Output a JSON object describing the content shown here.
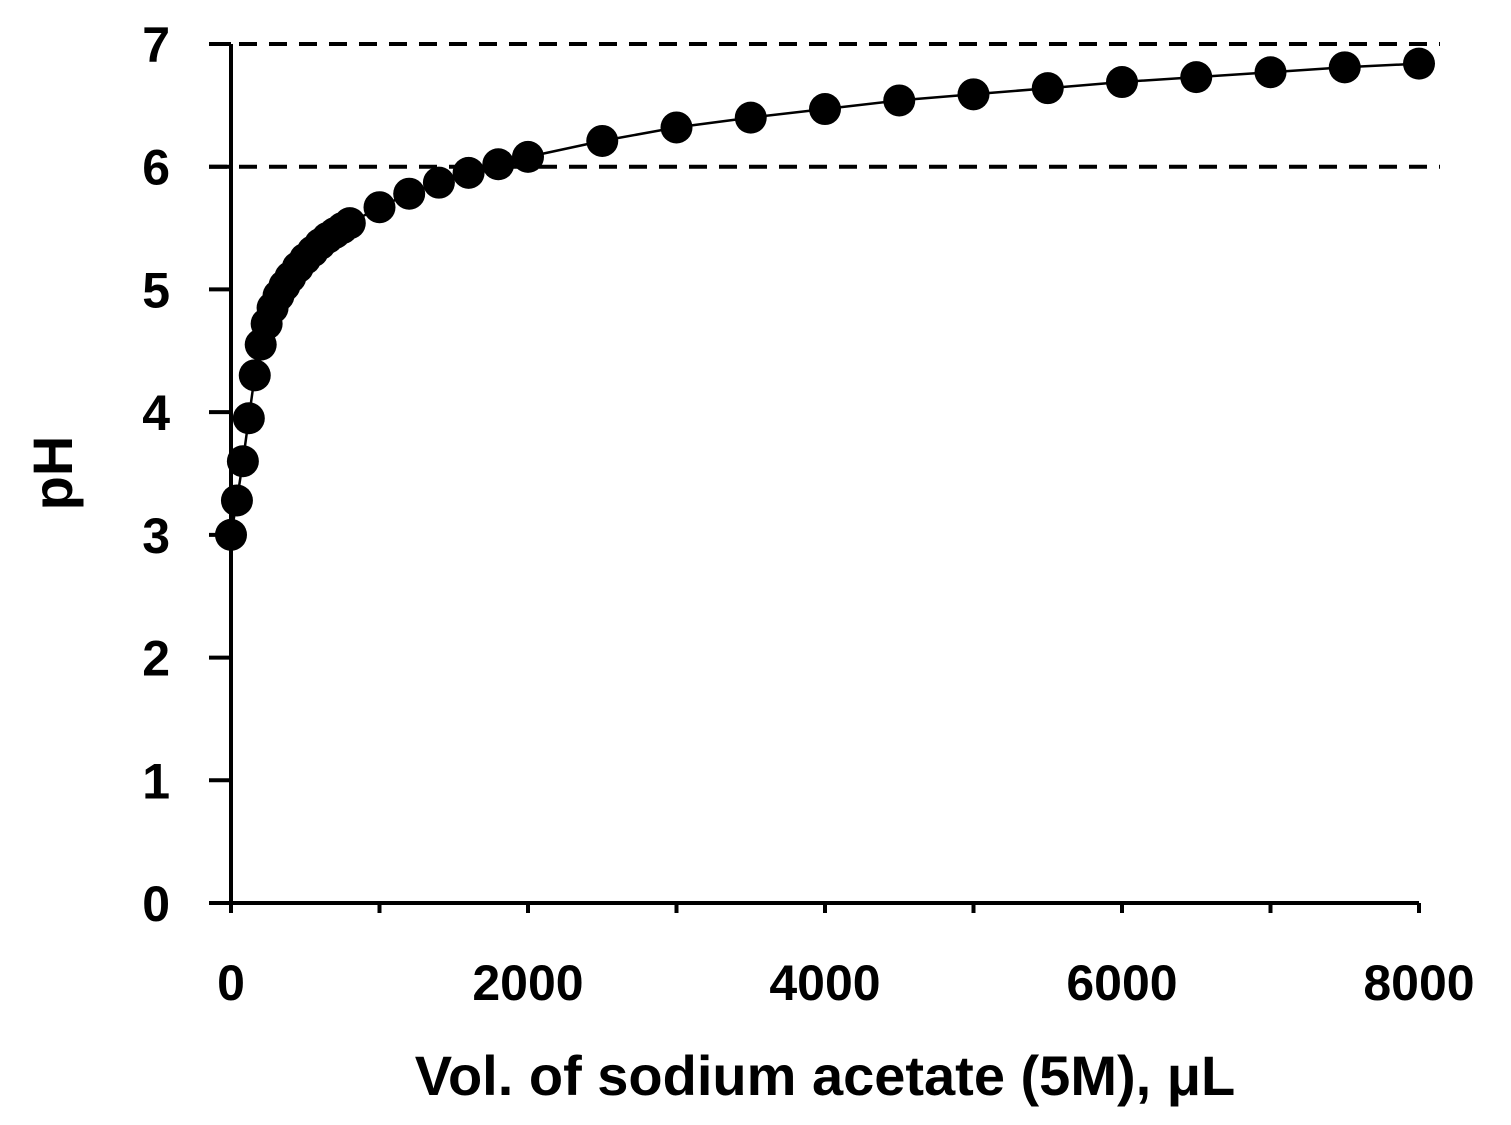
{
  "chart_data": {
    "type": "scatter",
    "title": "",
    "xlabel": "Vol. of sodium acetate (5M), μL",
    "ylabel": "pH",
    "xlim": [
      0,
      8000
    ],
    "ylim": [
      0,
      7
    ],
    "x_major_ticks": [
      0,
      2000,
      4000,
      6000,
      8000
    ],
    "x_tick_labels": [
      "0",
      "2000",
      "4000",
      "6000",
      "8000"
    ],
    "x_minor_ticks": [
      1000,
      3000,
      5000,
      7000
    ],
    "y_ticks": [
      0,
      1,
      2,
      3,
      4,
      5,
      6,
      7
    ],
    "y_tick_labels": [
      "0",
      "1",
      "2",
      "3",
      "4",
      "5",
      "6",
      "7"
    ],
    "reference_lines": [
      {
        "axis": "y",
        "value": 6,
        "style": "dashed"
      },
      {
        "axis": "y",
        "value": 7,
        "style": "dashed"
      }
    ],
    "grid": false,
    "legend": "none",
    "series": [
      {
        "connected": true,
        "marker": "filled-circle",
        "color": "#000000",
        "x": [
          0,
          40,
          80,
          120,
          160,
          200,
          240,
          280,
          320,
          360,
          400,
          450,
          500,
          550,
          600,
          650,
          700,
          750,
          800,
          1000,
          1200,
          1400,
          1600,
          1800,
          2000,
          2500,
          3000,
          3500,
          4000,
          4500,
          5000,
          5500,
          6000,
          6500,
          7000,
          7500,
          8000
        ],
        "y": [
          3.0,
          3.28,
          3.6,
          3.95,
          4.3,
          4.55,
          4.72,
          4.85,
          4.95,
          5.03,
          5.1,
          5.18,
          5.25,
          5.31,
          5.37,
          5.42,
          5.46,
          5.5,
          5.54,
          5.67,
          5.78,
          5.87,
          5.95,
          6.02,
          6.08,
          6.21,
          6.32,
          6.4,
          6.47,
          6.54,
          6.59,
          6.64,
          6.69,
          6.73,
          6.77,
          6.81,
          6.84
        ]
      }
    ]
  }
}
